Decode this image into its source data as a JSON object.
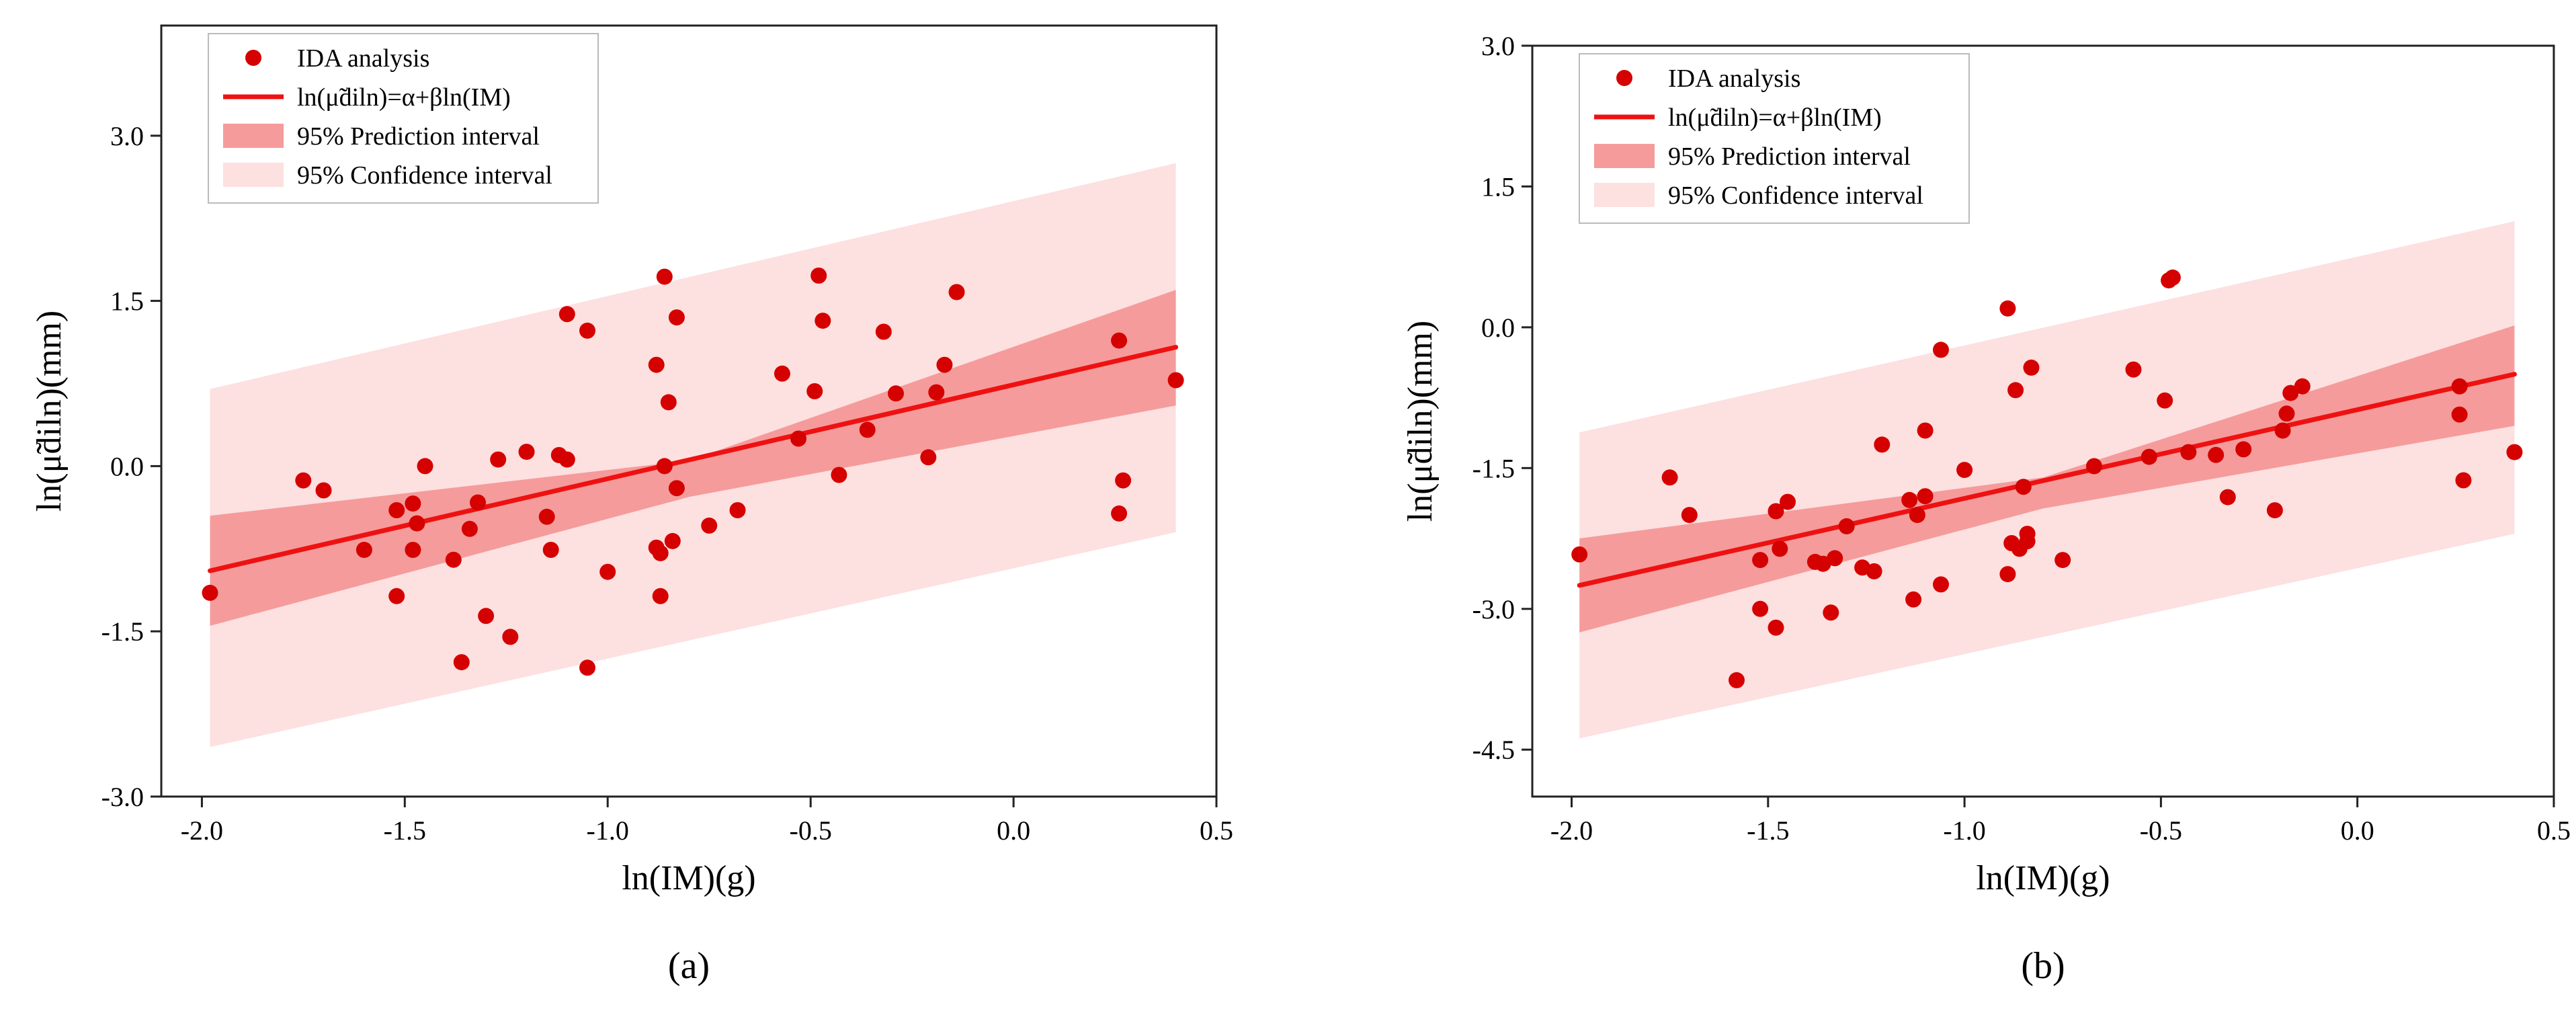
{
  "figure": {
    "colors": {
      "point": "#d50000",
      "fit_line": "#ee1111",
      "prediction_band": "#f59b9b",
      "confidence_band": "#fde0e0"
    }
  },
  "chart_data": [
    {
      "type": "scatter",
      "panel_label": "(a)",
      "xlabel": "ln(IM)(g)",
      "ylabel": "ln(μ̃diln)(mm)",
      "xlim": [
        -2.1,
        0.5
      ],
      "ylim": [
        -3.0,
        4.0
      ],
      "xticks": [
        -2.0,
        -1.5,
        -1.0,
        -0.5,
        0.0,
        0.5
      ],
      "xtick_labels": [
        "-2.0",
        "-1.5",
        "-1.0",
        "-0.5",
        "0.0",
        "0.5"
      ],
      "yticks": [
        -3.0,
        -1.5,
        0.0,
        1.5,
        3.0
      ],
      "ytick_labels": [
        "-3.0",
        "-1.5",
        "0.0",
        "1.5",
        "3.0"
      ],
      "grid": false,
      "legend_position": "top-left",
      "legend": [
        "IDA analysis",
        "ln(μ̃diln)=α+βln(IM)",
        "95% Prediction interval",
        "95% Confidence interval"
      ],
      "fit": {
        "x": [
          -1.98,
          0.4
        ],
        "y": [
          -0.95,
          1.08
        ]
      },
      "confidence_interval": {
        "x": [
          -1.98,
          -0.8,
          0.4
        ],
        "lower": [
          -1.45,
          -0.28,
          0.55
        ],
        "upper": [
          -0.45,
          0.05,
          1.6
        ]
      },
      "prediction_interval": {
        "x": [
          -1.98,
          0.4
        ],
        "lower": [
          -2.55,
          -0.6
        ],
        "upper": [
          0.7,
          2.75
        ]
      },
      "points": [
        {
          "x": -1.98,
          "y": -1.15
        },
        {
          "x": -1.75,
          "y": -0.13
        },
        {
          "x": -1.7,
          "y": -0.22
        },
        {
          "x": -1.6,
          "y": -0.76
        },
        {
          "x": -1.52,
          "y": -0.4
        },
        {
          "x": -1.52,
          "y": -1.18
        },
        {
          "x": -1.48,
          "y": -0.34
        },
        {
          "x": -1.48,
          "y": -0.76
        },
        {
          "x": -1.47,
          "y": -0.52
        },
        {
          "x": -1.45,
          "y": 0.0
        },
        {
          "x": -1.38,
          "y": -0.85
        },
        {
          "x": -1.36,
          "y": -1.78
        },
        {
          "x": -1.34,
          "y": -0.57
        },
        {
          "x": -1.32,
          "y": -0.33
        },
        {
          "x": -1.3,
          "y": -1.36
        },
        {
          "x": -1.27,
          "y": 0.06
        },
        {
          "x": -1.24,
          "y": -1.55
        },
        {
          "x": -1.2,
          "y": 0.13
        },
        {
          "x": -1.15,
          "y": -0.46
        },
        {
          "x": -1.14,
          "y": -0.76
        },
        {
          "x": -1.12,
          "y": 0.1
        },
        {
          "x": -1.1,
          "y": 0.06
        },
        {
          "x": -1.1,
          "y": 1.38
        },
        {
          "x": -1.05,
          "y": 1.23
        },
        {
          "x": -1.05,
          "y": -1.83
        },
        {
          "x": -1.0,
          "y": -0.96
        },
        {
          "x": -0.88,
          "y": 0.92
        },
        {
          "x": -0.88,
          "y": -0.74
        },
        {
          "x": -0.87,
          "y": -1.18
        },
        {
          "x": -0.87,
          "y": -0.79
        },
        {
          "x": -0.86,
          "y": 1.72
        },
        {
          "x": -0.86,
          "y": 0.0
        },
        {
          "x": -0.85,
          "y": 0.58
        },
        {
          "x": -0.84,
          "y": -0.68
        },
        {
          "x": -0.83,
          "y": 1.35
        },
        {
          "x": -0.83,
          "y": -0.2
        },
        {
          "x": -0.75,
          "y": -0.54
        },
        {
          "x": -0.68,
          "y": -0.4
        },
        {
          "x": -0.57,
          "y": 0.84
        },
        {
          "x": -0.53,
          "y": 0.25
        },
        {
          "x": -0.49,
          "y": 0.68
        },
        {
          "x": -0.48,
          "y": 1.73
        },
        {
          "x": -0.47,
          "y": 1.32
        },
        {
          "x": -0.43,
          "y": -0.08
        },
        {
          "x": -0.36,
          "y": 0.33
        },
        {
          "x": -0.32,
          "y": 1.22
        },
        {
          "x": -0.29,
          "y": 0.66
        },
        {
          "x": -0.21,
          "y": 0.08
        },
        {
          "x": -0.19,
          "y": 0.67
        },
        {
          "x": -0.17,
          "y": 0.92
        },
        {
          "x": -0.14,
          "y": 1.58
        },
        {
          "x": 0.26,
          "y": 1.14
        },
        {
          "x": 0.26,
          "y": -0.43
        },
        {
          "x": 0.27,
          "y": -0.13
        },
        {
          "x": 0.4,
          "y": 0.78
        }
      ]
    },
    {
      "type": "scatter",
      "panel_label": "(b)",
      "xlabel": "ln(IM)(g)",
      "ylabel": "ln(μ̃diln)(mm)",
      "xlim": [
        -2.1,
        0.5
      ],
      "ylim": [
        -5.0,
        3.0
      ],
      "xticks": [
        -2.0,
        -1.5,
        -1.0,
        -0.5,
        0.0,
        0.5
      ],
      "xtick_labels": [
        "-2.0",
        "-1.5",
        "-1.0",
        "-0.5",
        "0.0",
        "0.5"
      ],
      "yticks": [
        -4.5,
        -3.0,
        -1.5,
        0.0,
        1.5,
        3.0
      ],
      "ytick_labels": [
        "-4.5",
        "-3.0",
        "-1.5",
        "0.0",
        "1.5",
        "3.0"
      ],
      "grid": false,
      "legend_position": "top-left",
      "legend": [
        "IDA analysis",
        "ln(μ̃diln)=α+βln(IM)",
        "95% Prediction interval",
        "95% Confidence interval"
      ],
      "fit": {
        "x": [
          -1.98,
          0.4
        ],
        "y": [
          -2.75,
          -0.5
        ]
      },
      "confidence_interval": {
        "x": [
          -1.98,
          -0.8,
          0.4
        ],
        "lower": [
          -3.25,
          -1.93,
          -1.05
        ],
        "upper": [
          -2.25,
          -1.6,
          0.02
        ]
      },
      "prediction_interval": {
        "x": [
          -1.98,
          0.4
        ],
        "lower": [
          -4.38,
          -2.2
        ],
        "upper": [
          -1.12,
          1.13
        ]
      },
      "points": [
        {
          "x": -1.98,
          "y": -2.42
        },
        {
          "x": -1.75,
          "y": -1.6
        },
        {
          "x": -1.7,
          "y": -2.0
        },
        {
          "x": -1.58,
          "y": -3.76
        },
        {
          "x": -1.52,
          "y": -3.0
        },
        {
          "x": -1.52,
          "y": -2.48
        },
        {
          "x": -1.48,
          "y": -1.96
        },
        {
          "x": -1.48,
          "y": -3.2
        },
        {
          "x": -1.47,
          "y": -2.36
        },
        {
          "x": -1.45,
          "y": -1.86
        },
        {
          "x": -1.38,
          "y": -2.5
        },
        {
          "x": -1.36,
          "y": -2.52
        },
        {
          "x": -1.34,
          "y": -3.04
        },
        {
          "x": -1.33,
          "y": -2.46
        },
        {
          "x": -1.3,
          "y": -2.12
        },
        {
          "x": -1.26,
          "y": -2.56
        },
        {
          "x": -1.23,
          "y": -2.6
        },
        {
          "x": -1.21,
          "y": -1.25
        },
        {
          "x": -1.14,
          "y": -1.84
        },
        {
          "x": -1.13,
          "y": -2.9
        },
        {
          "x": -1.12,
          "y": -2.0
        },
        {
          "x": -1.1,
          "y": -1.1
        },
        {
          "x": -1.1,
          "y": -1.8
        },
        {
          "x": -1.06,
          "y": -0.24
        },
        {
          "x": -1.06,
          "y": -2.74
        },
        {
          "x": -1.0,
          "y": -1.52
        },
        {
          "x": -0.89,
          "y": 0.2
        },
        {
          "x": -0.89,
          "y": -2.63
        },
        {
          "x": -0.88,
          "y": -2.3
        },
        {
          "x": -0.87,
          "y": -0.67
        },
        {
          "x": -0.86,
          "y": -2.36
        },
        {
          "x": -0.85,
          "y": -1.7
        },
        {
          "x": -0.84,
          "y": -2.2
        },
        {
          "x": -0.84,
          "y": -2.28
        },
        {
          "x": -0.83,
          "y": -0.43
        },
        {
          "x": -0.75,
          "y": -2.48
        },
        {
          "x": -0.67,
          "y": -1.48
        },
        {
          "x": -0.57,
          "y": -0.45
        },
        {
          "x": -0.53,
          "y": -1.38
        },
        {
          "x": -0.49,
          "y": -0.78
        },
        {
          "x": -0.48,
          "y": 0.5
        },
        {
          "x": -0.47,
          "y": 0.53
        },
        {
          "x": -0.43,
          "y": -1.33
        },
        {
          "x": -0.36,
          "y": -1.36
        },
        {
          "x": -0.33,
          "y": -1.81
        },
        {
          "x": -0.29,
          "y": -1.3
        },
        {
          "x": -0.21,
          "y": -1.95
        },
        {
          "x": -0.19,
          "y": -1.1
        },
        {
          "x": -0.18,
          "y": -0.92
        },
        {
          "x": -0.17,
          "y": -0.7
        },
        {
          "x": -0.14,
          "y": -0.63
        },
        {
          "x": 0.26,
          "y": -0.63
        },
        {
          "x": 0.26,
          "y": -0.93
        },
        {
          "x": 0.27,
          "y": -1.63
        },
        {
          "x": 0.4,
          "y": -1.33
        }
      ]
    }
  ]
}
